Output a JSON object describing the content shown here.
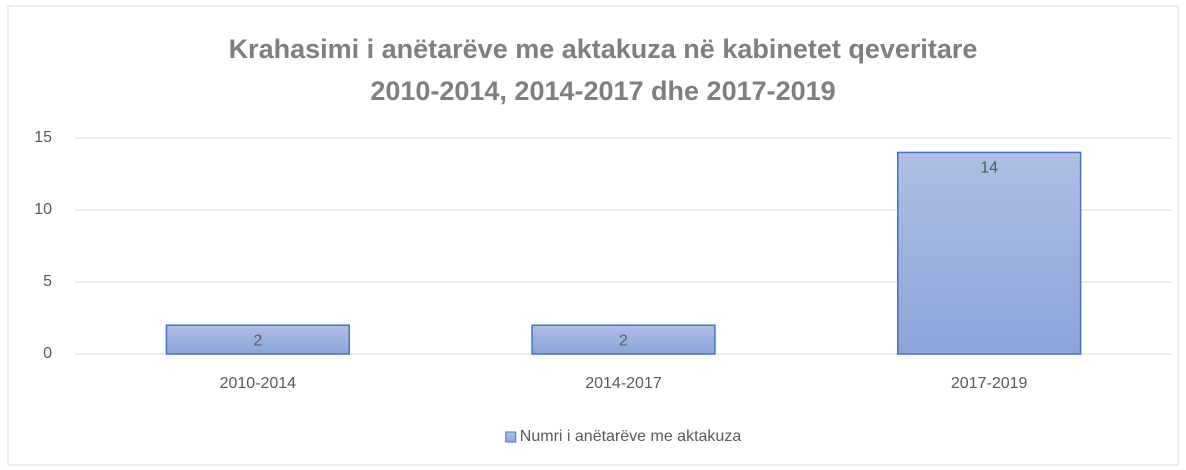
{
  "chart_data": {
    "type": "bar",
    "title": [
      "Krahasimi i anëtarëve me aktakuza në kabinetet qeveritare",
      "2010-2014, 2014-2017 dhe 2017-2019"
    ],
    "categories": [
      "2010-2014",
      "2014-2017",
      "2017-2019"
    ],
    "series": [
      {
        "name": "Numri i anëtarëve me aktakuza",
        "color": "#4472c4",
        "values": [
          2,
          2,
          14
        ]
      }
    ],
    "ylim": [
      0,
      15
    ],
    "yticks": [
      0,
      5,
      10,
      15
    ],
    "grid": true,
    "legend": "bottom",
    "data_labels": true
  }
}
